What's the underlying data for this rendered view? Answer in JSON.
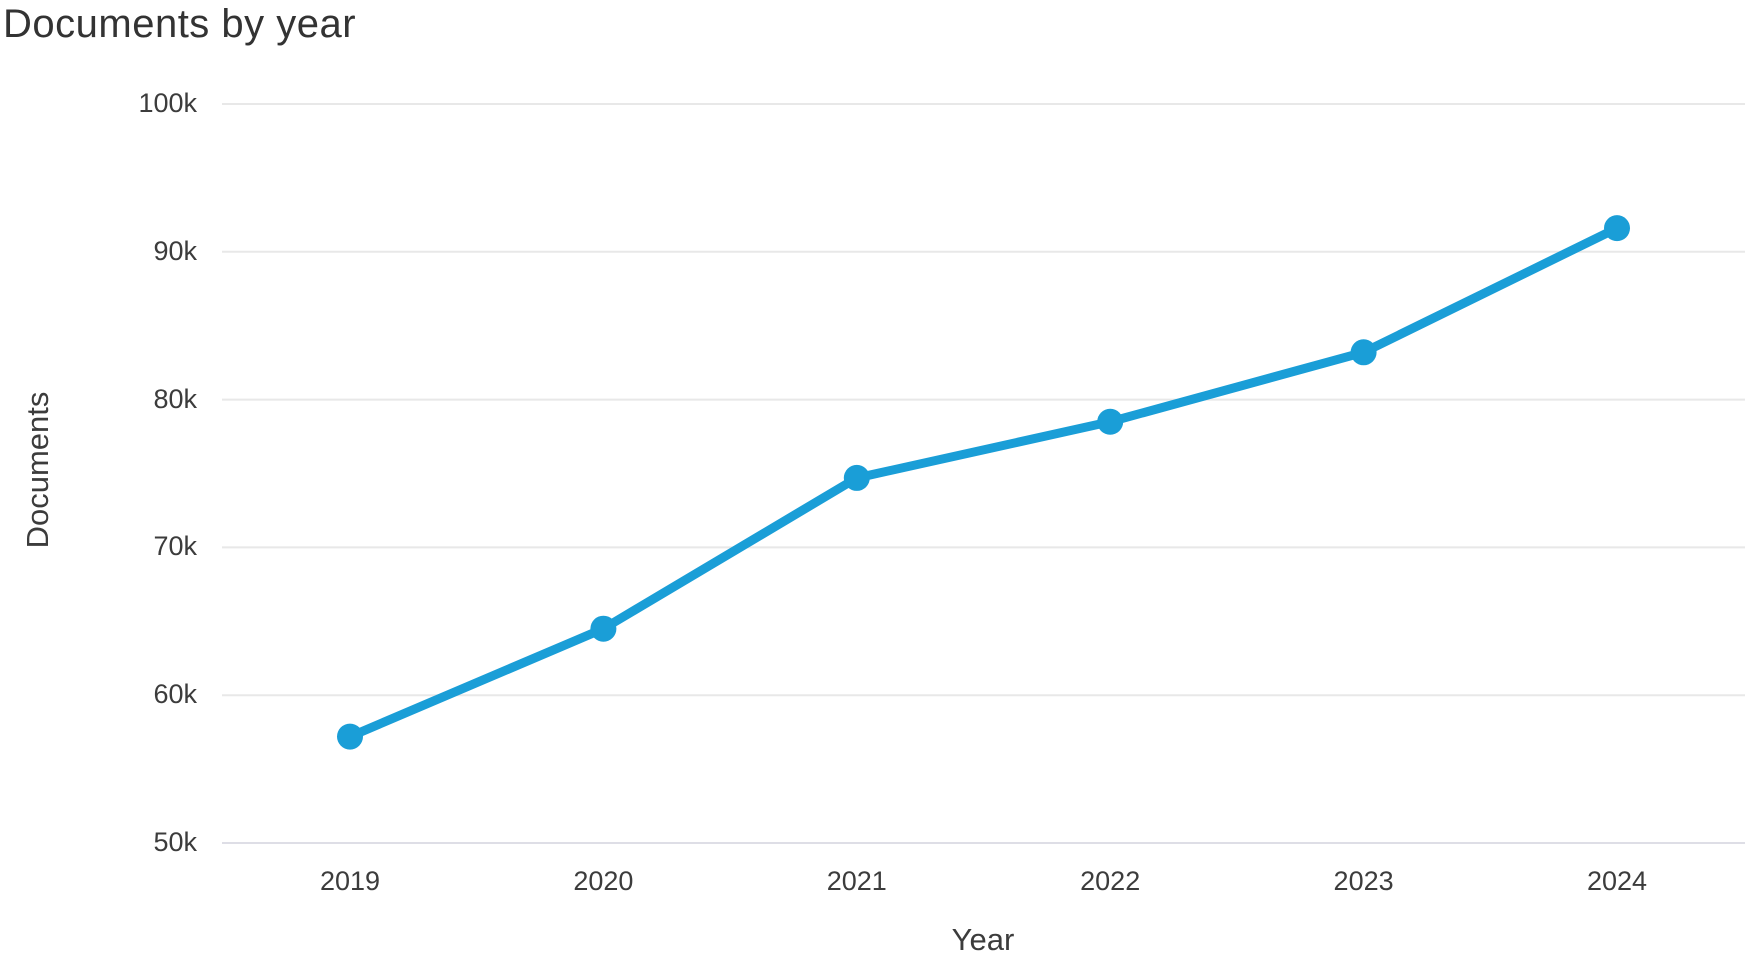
{
  "chart_data": {
    "type": "line",
    "title": "Documents by year",
    "xlabel": "Year",
    "ylabel": "Documents",
    "categories": [
      "2019",
      "2020",
      "2021",
      "2022",
      "2023",
      "2024"
    ],
    "series": [
      {
        "name": "Documents",
        "values": [
          57200,
          64500,
          74700,
          78500,
          83200,
          91600
        ]
      }
    ],
    "ylim": [
      50000,
      100000
    ],
    "yticks": [
      100000,
      90000,
      80000,
      70000,
      60000,
      50000
    ],
    "ytick_labels": [
      "100k",
      "90k",
      "80k",
      "70k",
      "60k",
      "50k"
    ],
    "grid": "horizontal",
    "legend": "none",
    "line_color": "#1a9ed7",
    "marker": "circle",
    "background_color": "#ffffff",
    "gridline_color": "#e8e8e8",
    "text_color": "#3c3c3c"
  }
}
